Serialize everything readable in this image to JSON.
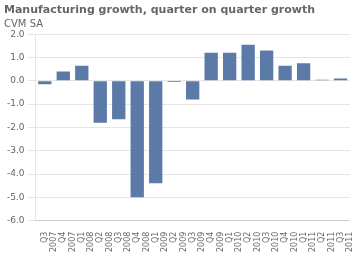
{
  "chart_data": {
    "type": "bar",
    "title": "Manufacturing growth, quarter on quarter growth",
    "subtitle": "CVM SA",
    "categories": [
      "Q3\n2007",
      "Q4\n2007",
      "Q1\n2008",
      "Q2\n2008",
      "Q3\n2008",
      "Q4\n2008",
      "Q1\n2009",
      "Q2\n2009",
      "Q3\n2009",
      "Q4\n2009",
      "Q1\n2010",
      "Q2\n2010",
      "Q3\n2010",
      "Q4\n2010",
      "Q1\n2011",
      "Q2\n2011",
      "Q3\n2011"
    ],
    "values": [
      -0.15,
      0.4,
      0.65,
      -1.8,
      -1.65,
      -5.0,
      -4.4,
      -0.05,
      -0.8,
      1.2,
      1.2,
      1.55,
      1.3,
      0.65,
      0.75,
      0.05,
      0.1
    ],
    "color": "#5b7aa8",
    "ylim": [
      -6.0,
      2.0
    ],
    "yticks": [
      {
        "value": -6.0,
        "label": "-6.0"
      },
      {
        "value": -5.0,
        "label": "-5.0"
      },
      {
        "value": -4.0,
        "label": "-4.0"
      },
      {
        "value": -3.0,
        "label": "-3.0"
      },
      {
        "value": -2.0,
        "label": "-2.0"
      },
      {
        "value": -1.0,
        "label": "-1.0"
      },
      {
        "value": 0.0,
        "label": "0.0"
      },
      {
        "value": 1.0,
        "label": "1.0"
      },
      {
        "value": 2.0,
        "label": "2.0"
      }
    ],
    "grid": true
  }
}
